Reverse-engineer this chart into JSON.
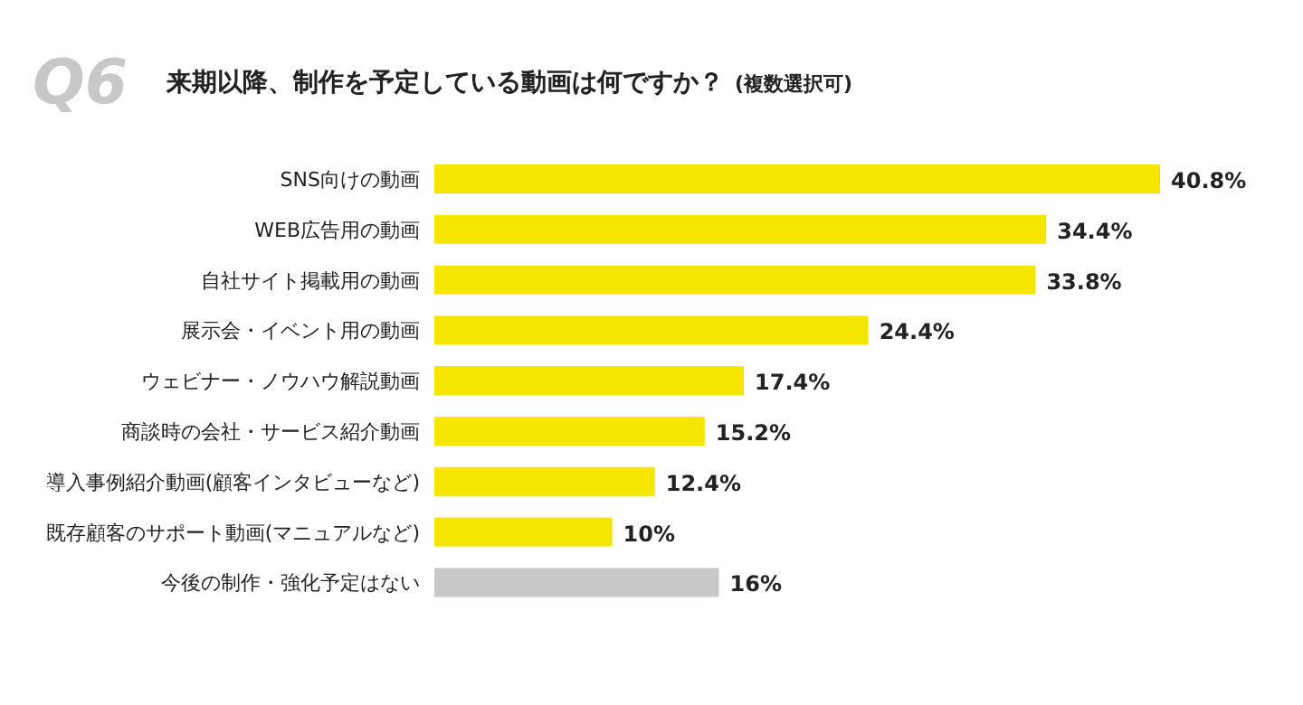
{
  "chart_data": {
    "type": "bar",
    "orientation": "horizontal",
    "title": "来期以降、制作を予定している動画は何ですか？",
    "subtitle": "(複数選択可)",
    "annotations": [
      "Q6"
    ],
    "categories": [
      "SNS向けの動画",
      "WEB広告用の動画",
      "自社サイト掲載用の動画",
      "展示会・イベント用の動画",
      "ウェビナー・ノウハウ解説動画",
      "商談時の会社・サービス紹介動画",
      "導入事例紹介動画(顧客インタビューなど)",
      "既存顧客のサポート動画(マニュアルなど)",
      "今後の制作・強化予定はない"
    ],
    "values": [
      40.8,
      34.4,
      33.8,
      24.4,
      17.4,
      15.2,
      12.4,
      10,
      16
    ],
    "value_labels": [
      "40.8%",
      "34.4%",
      "33.8%",
      "24.4%",
      "17.4%",
      "15.2%",
      "12.4%",
      "10%",
      "16%"
    ],
    "colors": [
      "#f5e500",
      "#f5e500",
      "#f5e500",
      "#f5e500",
      "#f5e500",
      "#f5e500",
      "#f5e500",
      "#f5e500",
      "#c9c7c8"
    ]
  }
}
